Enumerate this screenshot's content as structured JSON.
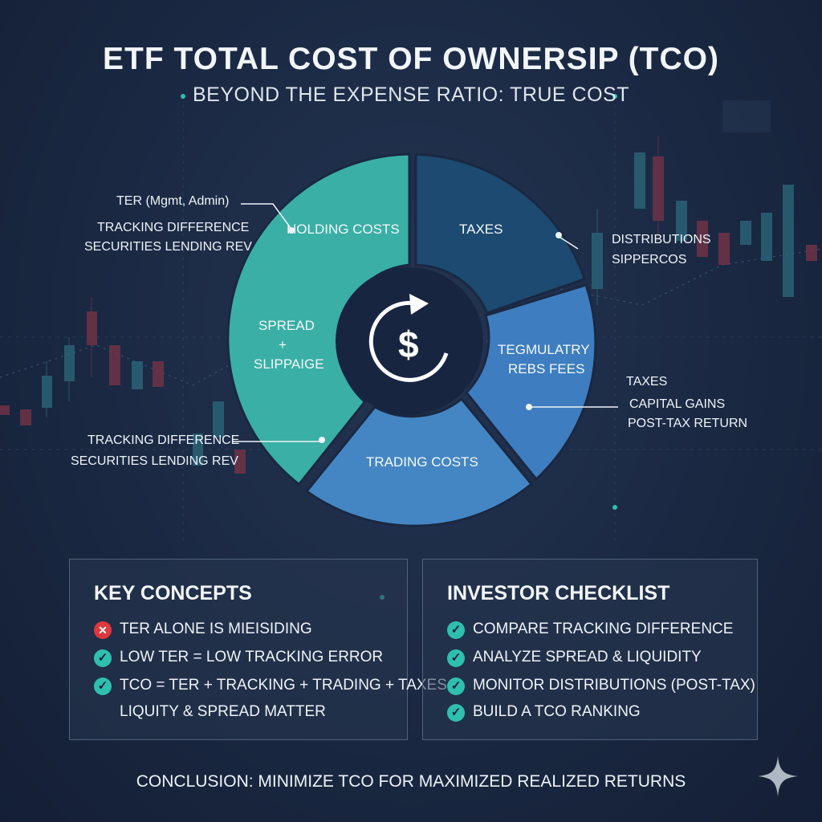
{
  "header": {
    "title": "ETF TOTAL COST OF OWNERSIP (TCO)",
    "subtitle": "BEYOND THE EXPENSE RATIO: TRUE COST"
  },
  "center_icon": {
    "name": "dollar-cycle-icon",
    "symbol": "$"
  },
  "segments": {
    "holding": {
      "label": "HOLDING COSTS",
      "color": "#3aafa5"
    },
    "spread": {
      "line1": "SPREAD",
      "line2": "+",
      "line3": "SLIPPAIGE"
    },
    "taxes": {
      "label": "TAXES",
      "color": "#1c4a70"
    },
    "regulatory": {
      "line1": "TEGMULATRY",
      "line2": "REBS FEES",
      "color": "#3e7dbf"
    },
    "trading": {
      "label": "TRADING COSTS",
      "color": "#4486c4"
    }
  },
  "callouts": {
    "ter": "TER (Mgmt, Admin)",
    "left_top_1": "TRACKING DIFFERENCE",
    "left_top_2": "SECURITIES LENDING REV",
    "left_bottom_1": "TRACKING DIFFERENCE",
    "left_bottom_2": "SECURITIES LENDING REV",
    "right_top_1": "DISTRIBUTIONS",
    "right_top_2": "SIPPERCOS",
    "right_bottom_1": "TAXES",
    "right_bottom_2": "CAPITAL GAINS",
    "right_bottom_3": "POST-TAX RETURN"
  },
  "key_concepts": {
    "title": "KEY CONCEPTS",
    "items": [
      {
        "text": "TER ALONE IS MIEISIDING",
        "status": "cross"
      },
      {
        "text": "LOW TER = LOW TRACKING ERROR",
        "status": "check"
      },
      {
        "text": "TCO = TER + TRACKING + TRADING + TAXES",
        "status": "check"
      },
      {
        "text": "LIQUITY & SPREAD MATTER",
        "status": "none"
      }
    ]
  },
  "checklist": {
    "title": "INVESTOR CHECKLIST",
    "items": [
      {
        "text": "COMPARE TRACKING DIFFERENCE",
        "status": "check"
      },
      {
        "text": "ANALYZE SPREAD & LIQUIDITY",
        "status": "check"
      },
      {
        "text": "MONITOR DISTRIBUTIONS (POST-TAX)",
        "status": "check"
      },
      {
        "text": "BUILD A TCO RANKING",
        "status": "check"
      }
    ]
  },
  "conclusion": "CONCLUSION: MINIMIZE TCO FOR MAXIMIZED REALIZED RETURNS",
  "colors": {
    "accent_teal": "#2fbfae",
    "cross_red": "#e0383d",
    "background": "#1a2842"
  }
}
